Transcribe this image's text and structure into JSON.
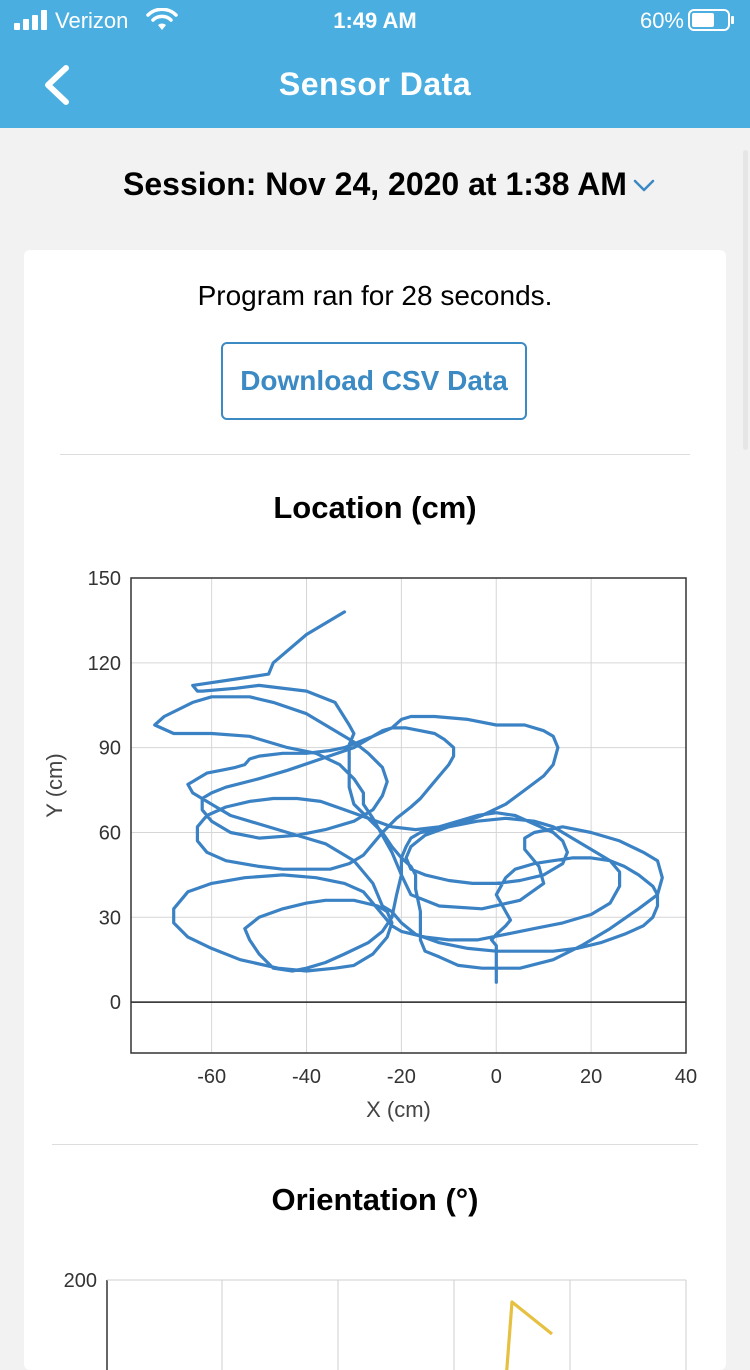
{
  "status_bar": {
    "carrier": "Verizon",
    "time": "1:49 AM",
    "battery": "60%"
  },
  "nav": {
    "title": "Sensor Data",
    "back_icon": "chevron-left-icon"
  },
  "session": {
    "label": "Session: Nov 24, 2020 at 1:38 AM",
    "dropdown_icon": "chevron-down-icon"
  },
  "summary": {
    "ran_text": "Program ran for 28 seconds.",
    "download_label": "Download CSV Data"
  },
  "colors": {
    "header": "#4aaee0",
    "accent": "#3b8ac4",
    "location_line": "#3b82c4",
    "orientation_line": "#e6c040"
  },
  "location_chart": {
    "title": "Location (cm)",
    "chart_data": {
      "type": "line",
      "title": "Location (cm)",
      "xlabel": "X (cm)",
      "ylabel": "Y (cm)",
      "xlim": [
        -77,
        40
      ],
      "ylim": [
        -18,
        150
      ],
      "xticks": [
        -60,
        -40,
        -20,
        0,
        20,
        40
      ],
      "yticks": [
        0,
        30,
        60,
        90,
        120,
        150
      ],
      "grid": true,
      "points": [
        [
          -32,
          138
        ],
        [
          -40,
          130
        ],
        [
          -47,
          120
        ],
        [
          -48,
          116
        ],
        [
          -52,
          115
        ],
        [
          -64,
          112
        ],
        [
          -63,
          110
        ],
        [
          -62,
          110
        ],
        [
          -55,
          111
        ],
        [
          -50,
          112
        ],
        [
          -40,
          110
        ],
        [
          -34,
          106
        ],
        [
          -31,
          98
        ],
        [
          -30,
          95
        ],
        [
          -31,
          91
        ],
        [
          -31,
          76
        ],
        [
          -30,
          70
        ],
        [
          -27,
          65
        ],
        [
          -24,
          60
        ],
        [
          -22,
          55
        ],
        [
          -20,
          51
        ],
        [
          -18,
          48
        ],
        [
          -17,
          45
        ],
        [
          -17,
          40
        ],
        [
          -16,
          32
        ],
        [
          -16,
          22
        ],
        [
          -15,
          18
        ],
        [
          -12,
          16
        ],
        [
          -8,
          13
        ],
        [
          -3,
          12
        ],
        [
          5,
          12
        ],
        [
          12,
          15
        ],
        [
          18,
          20
        ],
        [
          24,
          26
        ],
        [
          30,
          33
        ],
        [
          34,
          38
        ],
        [
          35,
          44
        ],
        [
          34,
          50
        ],
        [
          31,
          53
        ],
        [
          26,
          57
        ],
        [
          20,
          60
        ],
        [
          14,
          62
        ],
        [
          8,
          60
        ],
        [
          6,
          58
        ],
        [
          6,
          54
        ],
        [
          9,
          48
        ],
        [
          10,
          42
        ],
        [
          5,
          36
        ],
        [
          -3,
          33
        ],
        [
          -12,
          34
        ],
        [
          -18,
          38
        ],
        [
          -20,
          45
        ],
        [
          -22,
          53
        ],
        [
          -24,
          59
        ],
        [
          -26,
          65
        ],
        [
          -28,
          70
        ],
        [
          -28,
          74
        ],
        [
          -30,
          79
        ],
        [
          -33,
          84
        ],
        [
          -38,
          88
        ],
        [
          -44,
          90
        ],
        [
          -48,
          92
        ],
        [
          -52,
          94
        ],
        [
          -60,
          95
        ],
        [
          -68,
          95
        ],
        [
          -72,
          98
        ],
        [
          -70,
          101
        ],
        [
          -64,
          106
        ],
        [
          -60,
          108
        ],
        [
          -56,
          108
        ],
        [
          -52,
          108
        ],
        [
          -47,
          106
        ],
        [
          -40,
          102
        ],
        [
          -35,
          97
        ],
        [
          -30,
          92
        ],
        [
          -27,
          88
        ],
        [
          -24,
          83
        ],
        [
          -23,
          78
        ],
        [
          -24,
          73
        ],
        [
          -26,
          68
        ],
        [
          -30,
          64
        ],
        [
          -36,
          61
        ],
        [
          -42,
          59
        ],
        [
          -50,
          58
        ],
        [
          -56,
          60
        ],
        [
          -60,
          64
        ],
        [
          -62,
          68
        ],
        [
          -62,
          72
        ],
        [
          -60,
          74
        ],
        [
          -57,
          76
        ],
        [
          -50,
          79
        ],
        [
          -44,
          82
        ],
        [
          -37,
          86
        ],
        [
          -30,
          90
        ],
        [
          -26,
          94
        ],
        [
          -22,
          97
        ],
        [
          -20,
          100
        ],
        [
          -18,
          101
        ],
        [
          -13,
          101
        ],
        [
          -6,
          100
        ],
        [
          0,
          98
        ],
        [
          6,
          98
        ],
        [
          10,
          96
        ],
        [
          12,
          94
        ],
        [
          13,
          90
        ],
        [
          12,
          84
        ],
        [
          10,
          80
        ],
        [
          6,
          75
        ],
        [
          2,
          70
        ],
        [
          -3,
          66
        ],
        [
          -8,
          63
        ],
        [
          -12,
          61
        ],
        [
          -16,
          60
        ],
        [
          -18,
          58
        ],
        [
          -19,
          55
        ],
        [
          -20,
          51
        ],
        [
          -20,
          45
        ],
        [
          -21,
          38
        ],
        [
          -22,
          30
        ],
        [
          -24,
          25
        ],
        [
          -27,
          21
        ],
        [
          -32,
          17
        ],
        [
          -36,
          14
        ],
        [
          -40,
          12
        ],
        [
          -43,
          11
        ],
        [
          -47,
          12
        ],
        [
          -50,
          17
        ],
        [
          -52,
          22
        ],
        [
          -53,
          26
        ],
        [
          -50,
          30
        ],
        [
          -45,
          33
        ],
        [
          -40,
          35
        ],
        [
          -36,
          36
        ],
        [
          -30,
          36
        ],
        [
          -25,
          34
        ],
        [
          -23,
          32
        ],
        [
          -22,
          28
        ],
        [
          -23,
          23
        ],
        [
          -26,
          17
        ],
        [
          -30,
          13
        ],
        [
          -34,
          12
        ],
        [
          -40,
          11
        ],
        [
          -46,
          12
        ],
        [
          -54,
          15
        ],
        [
          -60,
          19
        ],
        [
          -65,
          23
        ],
        [
          -68,
          28
        ],
        [
          -68,
          33
        ],
        [
          -65,
          39
        ],
        [
          -60,
          42
        ],
        [
          -53,
          44
        ],
        [
          -45,
          45
        ],
        [
          -38,
          44
        ],
        [
          -32,
          42
        ],
        [
          -28,
          39
        ],
        [
          -26,
          35
        ],
        [
          -24,
          31
        ],
        [
          -22,
          27
        ],
        [
          -20,
          25
        ],
        [
          -15,
          23
        ],
        [
          -10,
          22
        ],
        [
          -4,
          22
        ],
        [
          2,
          24
        ],
        [
          8,
          26
        ],
        [
          14,
          28
        ],
        [
          20,
          31
        ],
        [
          24,
          35
        ],
        [
          26,
          41
        ],
        [
          26,
          46
        ],
        [
          24,
          50
        ],
        [
          20,
          54
        ],
        [
          16,
          58
        ],
        [
          12,
          62
        ],
        [
          8,
          64
        ],
        [
          2,
          65
        ],
        [
          -4,
          64
        ],
        [
          -10,
          62
        ],
        [
          -15,
          59
        ],
        [
          -18,
          55
        ],
        [
          -19,
          51
        ],
        [
          -18,
          47
        ],
        [
          -15,
          45
        ],
        [
          -10,
          43
        ],
        [
          -5,
          42
        ],
        [
          0,
          42
        ],
        [
          5,
          43
        ],
        [
          10,
          45
        ],
        [
          14,
          49
        ],
        [
          15,
          53
        ],
        [
          14,
          57
        ],
        [
          12,
          60
        ],
        [
          8,
          63
        ],
        [
          4,
          66
        ],
        [
          0,
          67
        ],
        [
          -4,
          66
        ],
        [
          -8,
          64
        ],
        [
          -12,
          62
        ],
        [
          -17,
          61
        ],
        [
          -22,
          62
        ],
        [
          -27,
          65
        ],
        [
          -32,
          68
        ],
        [
          -37,
          71
        ],
        [
          -42,
          72
        ],
        [
          -47,
          72
        ],
        [
          -52,
          71
        ],
        [
          -57,
          69
        ],
        [
          -61,
          66
        ],
        [
          -63,
          62
        ],
        [
          -63,
          57
        ],
        [
          -61,
          53
        ],
        [
          -57,
          50
        ],
        [
          -50,
          48
        ],
        [
          -45,
          47
        ],
        [
          -40,
          47
        ],
        [
          -35,
          47
        ],
        [
          -31,
          49
        ],
        [
          -28,
          52
        ],
        [
          -26,
          56
        ],
        [
          -24,
          60
        ],
        [
          -21,
          65
        ],
        [
          -18,
          69
        ],
        [
          -16,
          72
        ],
        [
          -15,
          74
        ],
        [
          -14,
          76
        ],
        [
          -12,
          80
        ],
        [
          -10,
          84
        ],
        [
          -9,
          87
        ],
        [
          -9,
          90
        ],
        [
          -11,
          93
        ],
        [
          -13,
          95
        ],
        [
          -16,
          96
        ],
        [
          -19,
          97
        ],
        [
          -22,
          97
        ],
        [
          -24,
          96
        ],
        [
          -26,
          94
        ],
        [
          -29,
          92
        ],
        [
          -32,
          90
        ],
        [
          -35,
          89
        ],
        [
          -40,
          88
        ],
        [
          -45,
          88
        ],
        [
          -50,
          87
        ],
        [
          -52,
          86
        ],
        [
          -53,
          84
        ],
        [
          -55,
          83
        ],
        [
          -58,
          82
        ],
        [
          -61,
          81
        ],
        [
          -63,
          79
        ],
        [
          -64,
          78
        ],
        [
          -65,
          77
        ],
        [
          -64,
          74
        ],
        [
          -60,
          70
        ],
        [
          -56,
          66
        ],
        [
          -50,
          63
        ],
        [
          -44,
          60
        ],
        [
          -40,
          58
        ],
        [
          -36,
          56
        ],
        [
          -33,
          53
        ],
        [
          -30,
          50
        ],
        [
          -28,
          46
        ],
        [
          -26,
          42
        ],
        [
          -25,
          38
        ],
        [
          -24,
          34
        ],
        [
          -22,
          32
        ],
        [
          -20,
          28
        ],
        [
          -17,
          24
        ],
        [
          -12,
          21
        ],
        [
          -6,
          19
        ],
        [
          0,
          18
        ],
        [
          6,
          18
        ],
        [
          12,
          18
        ],
        [
          17,
          19
        ],
        [
          22,
          21
        ],
        [
          27,
          24
        ],
        [
          31,
          27
        ],
        [
          33,
          30
        ],
        [
          34,
          34
        ],
        [
          34,
          38
        ],
        [
          33,
          41
        ],
        [
          30,
          45
        ],
        [
          27,
          48
        ],
        [
          24,
          50
        ],
        [
          20,
          51
        ],
        [
          16,
          51
        ],
        [
          12,
          50
        ],
        [
          8,
          49
        ],
        [
          4,
          47
        ],
        [
          2,
          44
        ],
        [
          1,
          41
        ],
        [
          0,
          38
        ],
        [
          1,
          35
        ],
        [
          2,
          32
        ],
        [
          3,
          29
        ],
        [
          2,
          27
        ],
        [
          0,
          24
        ],
        [
          -1,
          22
        ],
        [
          0,
          20
        ],
        [
          0,
          18
        ],
        [
          0,
          16
        ],
        [
          0,
          10
        ],
        [
          0,
          7
        ]
      ]
    }
  },
  "orientation_chart": {
    "title": "Orientation (°)",
    "chart_data": {
      "type": "line",
      "title": "Orientation (°)",
      "ylim": [
        0,
        200
      ],
      "yticks": [
        200
      ],
      "grid": true,
      "note_visible_series_color": "yellow"
    }
  }
}
